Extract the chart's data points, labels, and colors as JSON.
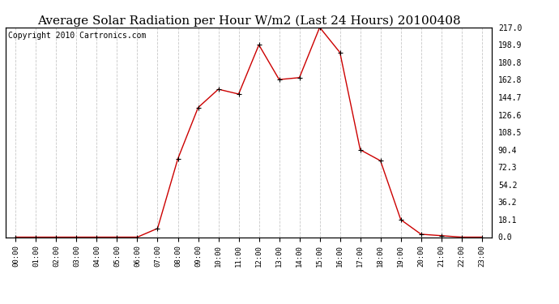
{
  "title": "Average Solar Radiation per Hour W/m2 (Last 24 Hours) 20100408",
  "copyright": "Copyright 2010 Cartronics.com",
  "hours": [
    "00:00",
    "01:00",
    "02:00",
    "03:00",
    "04:00",
    "05:00",
    "06:00",
    "07:00",
    "08:00",
    "09:00",
    "10:00",
    "11:00",
    "12:00",
    "13:00",
    "14:00",
    "15:00",
    "16:00",
    "17:00",
    "18:00",
    "19:00",
    "20:00",
    "21:00",
    "22:00",
    "23:00"
  ],
  "values": [
    0.0,
    0.0,
    0.0,
    0.0,
    0.0,
    0.0,
    0.0,
    9.0,
    81.0,
    134.0,
    153.0,
    148.0,
    198.9,
    163.0,
    165.0,
    217.0,
    191.0,
    90.4,
    79.0,
    18.1,
    3.0,
    1.5,
    0.0,
    0.0
  ],
  "yticks": [
    0.0,
    18.1,
    36.2,
    54.2,
    72.3,
    90.4,
    108.5,
    126.6,
    144.7,
    162.8,
    180.8,
    198.9,
    217.0
  ],
  "line_color": "#cc0000",
  "marker": "+",
  "marker_color": "#000000",
  "grid_color": "#c8c8c8",
  "bg_color": "#ffffff",
  "title_fontsize": 11,
  "copyright_fontsize": 7,
  "ylim": [
    0.0,
    217.0
  ],
  "ylabel_right": true
}
